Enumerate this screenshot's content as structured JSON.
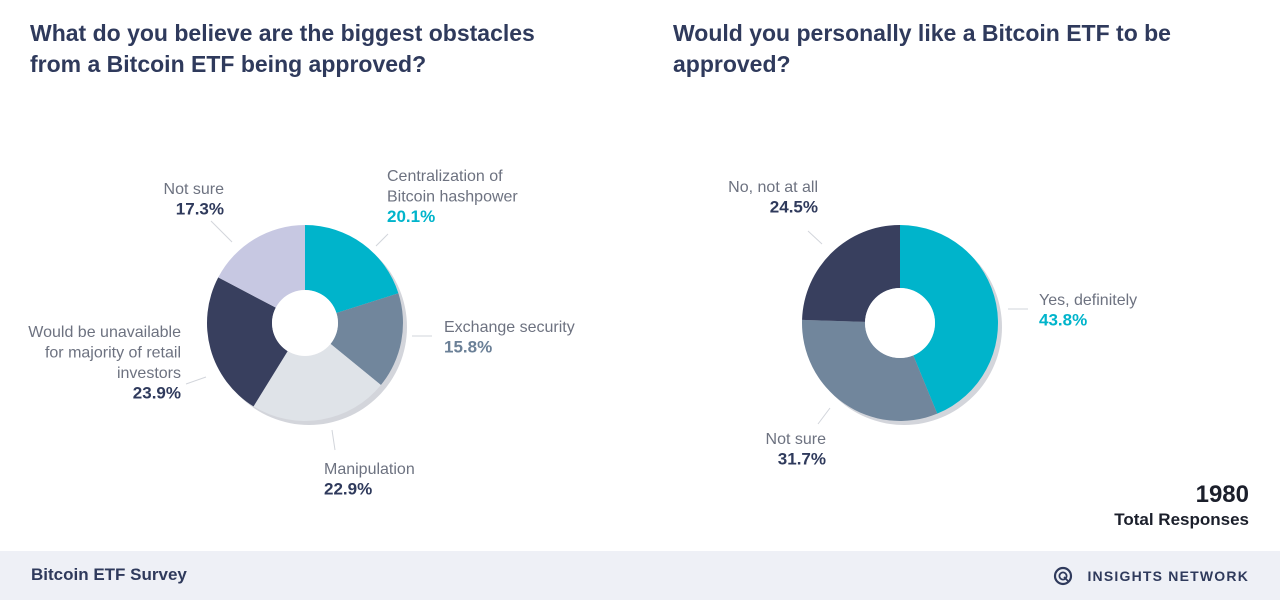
{
  "chart_data": [
    {
      "type": "pie",
      "title": "What do you believe are the biggest obstacles from a Bitcoin ETF being approved?",
      "unit": "%",
      "slices": [
        {
          "name": "Centralization of Bitcoin hashpower",
          "name_lines": [
            "Centralization of",
            "Bitcoin hashpower"
          ],
          "value": 20.1,
          "value_label": "20.1%",
          "color": "#00b4cb",
          "label_color": "#00b4cb"
        },
        {
          "name": "Exchange security",
          "name_lines": [
            "Exchange security"
          ],
          "value": 15.8,
          "value_label": "15.8%",
          "color": "#71869c",
          "label_color": "#6b8097"
        },
        {
          "name": "Manipulation",
          "name_lines": [
            "Manipulation"
          ],
          "value": 22.9,
          "value_label": "22.9%",
          "color": "#dfe3e8",
          "label_color": "#2f3a5c"
        },
        {
          "name": "Would be unavailable for majority of retail investors",
          "name_lines": [
            "Would be unavailable",
            "for majority of retail",
            "investors"
          ],
          "value": 23.9,
          "value_label": "23.9%",
          "color": "#383f5e",
          "label_color": "#2f3a5c"
        },
        {
          "name": "Not sure",
          "name_lines": [
            "Not sure"
          ],
          "value": 17.3,
          "value_label": "17.3%",
          "color": "#c7c8e2",
          "label_color": "#2f3a5c"
        }
      ]
    },
    {
      "type": "pie",
      "title": "Would you personally like a Bitcoin ETF to be approved?",
      "unit": "%",
      "slices": [
        {
          "name": "Yes, definitely",
          "name_lines": [
            "Yes, definitely"
          ],
          "value": 43.8,
          "value_label": "43.8%",
          "color": "#00b4cb",
          "label_color": "#00b4cb"
        },
        {
          "name": "Not sure",
          "name_lines": [
            "Not sure"
          ],
          "value": 31.7,
          "value_label": "31.7%",
          "color": "#71869c",
          "label_color": "#2f3a5c"
        },
        {
          "name": "No, not at all",
          "name_lines": [
            "No, not at all"
          ],
          "value": 24.5,
          "value_label": "24.5%",
          "color": "#383f5e",
          "label_color": "#2f3a5c"
        }
      ]
    }
  ],
  "responses": {
    "count": "1980",
    "label": "Total Responses"
  },
  "footer": {
    "survey": "Bitcoin ETF Survey",
    "brand": "INSIGHTS NETWORK",
    "brand_icon": "insights-network-logo-icon"
  }
}
